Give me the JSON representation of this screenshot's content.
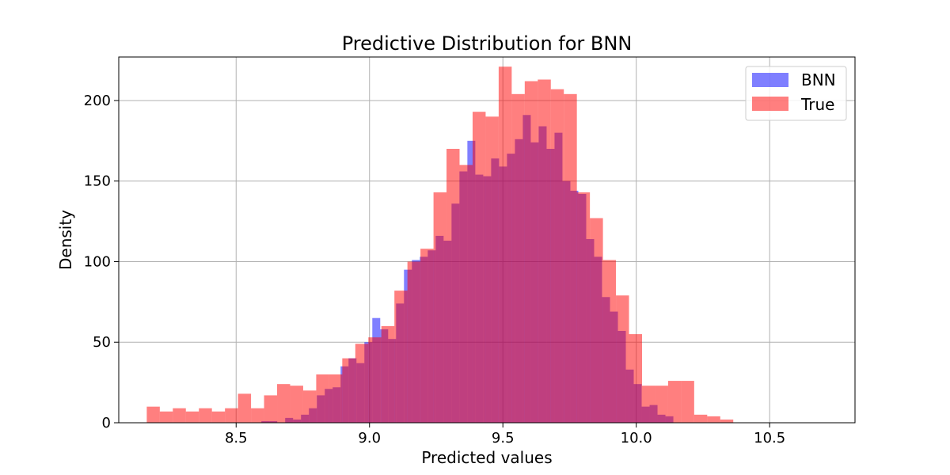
{
  "chart_data": {
    "type": "bar",
    "title": "Predictive Distribution for BNN",
    "xlabel": "Predicted values",
    "ylabel": "Density",
    "xlim": [
      8.06,
      10.82
    ],
    "ylim": [
      0,
      227
    ],
    "xticks": [
      "8.5",
      "9.0",
      "9.5",
      "10.0",
      "10.5"
    ],
    "xtick_values": [
      8.5,
      9.0,
      9.5,
      10.0,
      10.5
    ],
    "yticks": [
      "0",
      "50",
      "100",
      "150",
      "200"
    ],
    "ytick_values": [
      0,
      50,
      100,
      150,
      200
    ],
    "grid": true,
    "legend_position": "top-right",
    "series": [
      {
        "name": "BNN",
        "color": "#0000ff",
        "alpha": 0.5,
        "bin_start": 8.565,
        "bin_width": 0.0297,
        "values": [
          0,
          1,
          1,
          0,
          3,
          2,
          5,
          9,
          17,
          21,
          22,
          35,
          40,
          37,
          50,
          65,
          58,
          52,
          74,
          95,
          101,
          103,
          107,
          116,
          113,
          136,
          156,
          175,
          154,
          153,
          164,
          159,
          167,
          176,
          191,
          174,
          184,
          170,
          180,
          150,
          144,
          142,
          114,
          103,
          78,
          69,
          57,
          33,
          24,
          10,
          11,
          5,
          4
        ]
      },
      {
        "name": "True",
        "color": "#ff0000",
        "alpha": 0.5,
        "bin_start": 8.165,
        "bin_width": 0.04886,
        "values": [
          10,
          7,
          9,
          7,
          9,
          7,
          9,
          18,
          9,
          17,
          24,
          23,
          20,
          30,
          30,
          40,
          49,
          53,
          60,
          82,
          100,
          108,
          143,
          170,
          160,
          193,
          190,
          221,
          204,
          212,
          213,
          207,
          204,
          143,
          127,
          101,
          79,
          55,
          23,
          23,
          26,
          26,
          5,
          4,
          2
        ]
      }
    ]
  }
}
